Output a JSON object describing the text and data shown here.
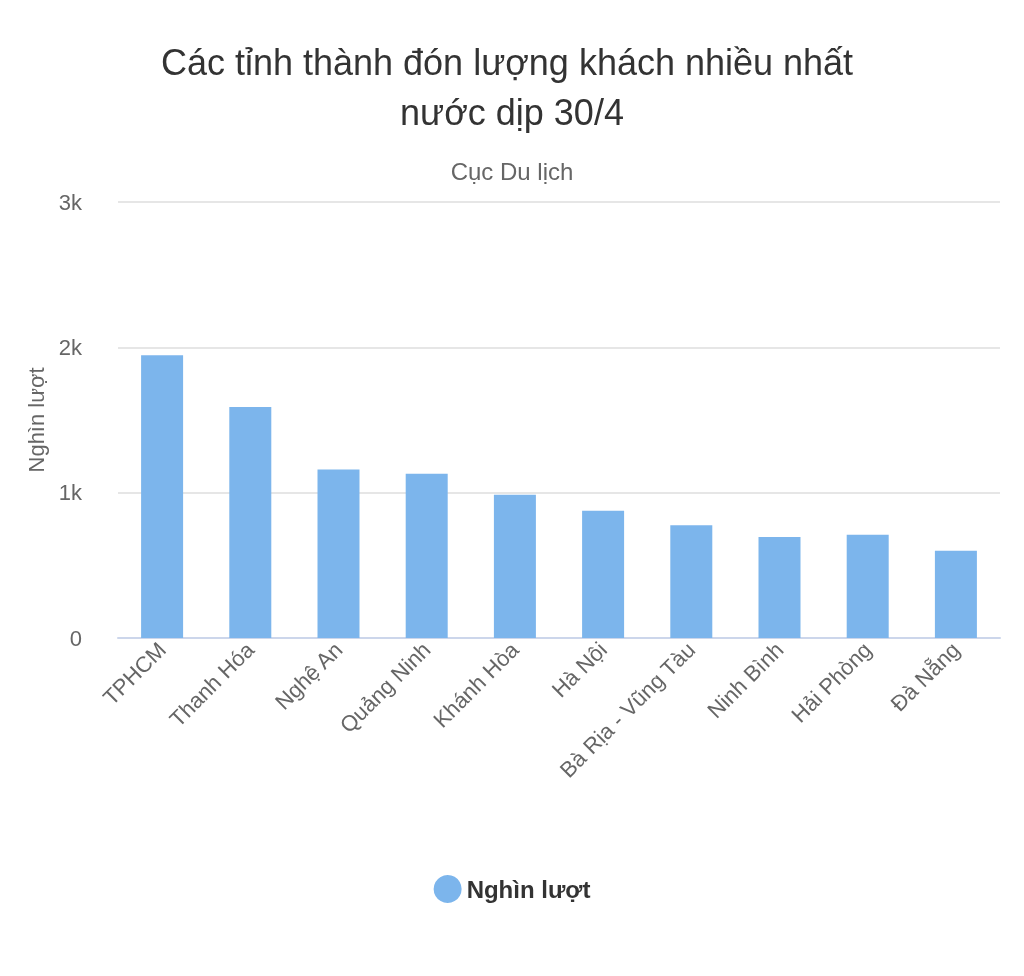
{
  "chart_data": {
    "type": "bar",
    "title": "Các tỉnh thành đón lượng khách nhiều nhất nước dịp 30/4",
    "subtitle": "Cục Du lịch",
    "ylabel": "Nghìn lượt",
    "categories": [
      "TPHCM",
      "Thanh Hóa",
      "Nghệ An",
      "Quảng Ninh",
      "Khánh Hòa",
      "Hà Nội",
      "Bà Rịa - Vũng Tàu",
      "Ninh Bình",
      "Hải Phòng",
      "Đà Nẵng"
    ],
    "series": [
      {
        "name": "Nghìn lượt",
        "color": "#7cb5ec",
        "values": [
          1945,
          1590,
          1160,
          1130,
          985,
          875,
          775,
          695,
          710,
          600
        ]
      }
    ],
    "ylim": [
      0,
      3000
    ],
    "yticks": [
      0,
      {
        "value": 1000,
        "label": "1k"
      },
      {
        "value": 2000,
        "label": "2k"
      },
      {
        "value": 3000,
        "label": "3k"
      }
    ],
    "grid": "y",
    "legend": "bottom"
  }
}
